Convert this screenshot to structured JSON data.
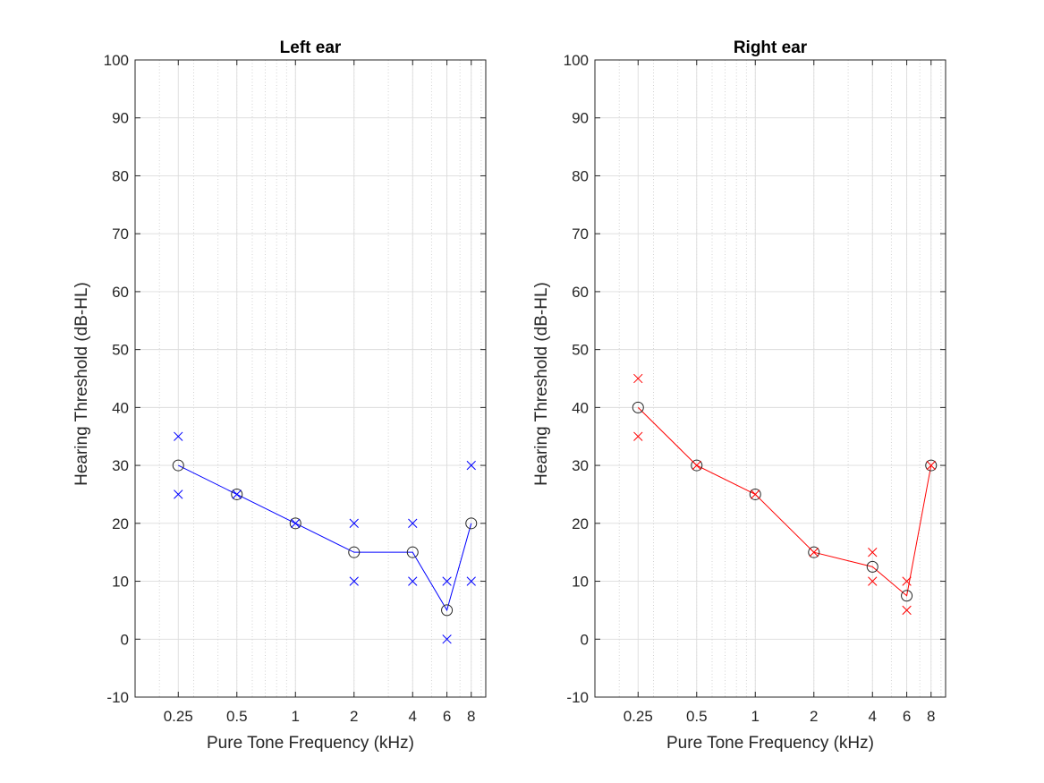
{
  "chart_data": [
    {
      "type": "line",
      "title": "Left ear",
      "xlabel": "Pure Tone Frequency (kHz)",
      "ylabel": "Hearing Threshold (dB-HL)",
      "xscale": "log",
      "xlim": [
        0.15,
        9.5
      ],
      "ylim": [
        -10,
        100
      ],
      "xticks": [
        0.25,
        0.5,
        1,
        2,
        4,
        6,
        8
      ],
      "xtick_labels": [
        "0.25",
        "0.5",
        "1",
        "2",
        "4",
        "6",
        "8"
      ],
      "yticks": [
        -10,
        0,
        10,
        20,
        30,
        40,
        50,
        60,
        70,
        80,
        90,
        100
      ],
      "ytick_labels": [
        "-10",
        "0",
        "10",
        "20",
        "30",
        "40",
        "50",
        "60",
        "70",
        "80",
        "90",
        "100"
      ],
      "grid": true,
      "color": "#0000ff",
      "series": [
        {
          "marker": "circle",
          "connected": true,
          "x": [
            0.25,
            0.5,
            1,
            2,
            4,
            6,
            8
          ],
          "y": [
            30,
            25,
            20,
            15,
            15,
            5,
            20
          ]
        },
        {
          "marker": "cross",
          "connected": false,
          "x": [
            0.25,
            0.25,
            0.5,
            1,
            2,
            2,
            4,
            4,
            6,
            6,
            8,
            8
          ],
          "y": [
            35,
            25,
            25,
            20,
            20,
            10,
            20,
            10,
            10,
            0,
            30,
            10
          ]
        }
      ]
    },
    {
      "type": "line",
      "title": "Right ear",
      "xlabel": "Pure Tone Frequency (kHz)",
      "ylabel": "Hearing Threshold (dB-HL)",
      "xscale": "log",
      "xlim": [
        0.15,
        9.5
      ],
      "ylim": [
        -10,
        100
      ],
      "xticks": [
        0.25,
        0.5,
        1,
        2,
        4,
        6,
        8
      ],
      "xtick_labels": [
        "0.25",
        "0.5",
        "1",
        "2",
        "4",
        "6",
        "8"
      ],
      "yticks": [
        -10,
        0,
        10,
        20,
        30,
        40,
        50,
        60,
        70,
        80,
        90,
        100
      ],
      "ytick_labels": [
        "-10",
        "0",
        "10",
        "20",
        "30",
        "40",
        "50",
        "60",
        "70",
        "80",
        "90",
        "100"
      ],
      "grid": true,
      "color": "#ff0000",
      "series": [
        {
          "marker": "circle",
          "connected": true,
          "x": [
            0.25,
            0.5,
            1,
            2,
            4,
            6,
            8
          ],
          "y": [
            40,
            30,
            25,
            15,
            12.5,
            7.5,
            30
          ]
        },
        {
          "marker": "cross",
          "connected": false,
          "x": [
            0.25,
            0.25,
            0.5,
            1,
            2,
            4,
            4,
            6,
            6,
            8
          ],
          "y": [
            45,
            35,
            30,
            25,
            15,
            15,
            10,
            10,
            5,
            30
          ]
        }
      ]
    }
  ]
}
